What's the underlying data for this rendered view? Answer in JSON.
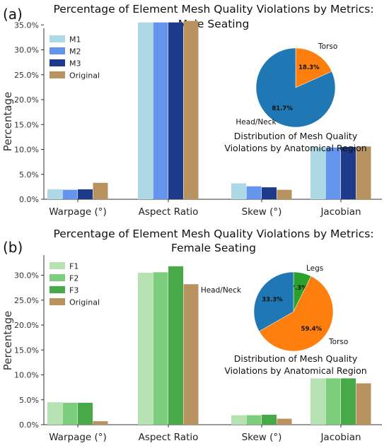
{
  "panels": [
    {
      "letter": "(a)",
      "title_line1": "Percentage of Element Mesh Quality Violations by Metrics:",
      "title_line2": "Male Seating",
      "ylabel": "Percentage",
      "categories": [
        "Warpage (°)",
        "Aspect Ratio",
        "Skew (°)",
        "Jacobian"
      ],
      "yticks": [
        "0.0%",
        "5.0%",
        "10.0%",
        "15.0%",
        "20.0%",
        "25.0%",
        "30.0%",
        "35.0%"
      ],
      "series": [
        {
          "name": "M1",
          "color": "#add8e6",
          "values": [
            2.0,
            35.5,
            3.2,
            10.4
          ]
        },
        {
          "name": "M2",
          "color": "#6495ed",
          "values": [
            1.9,
            35.5,
            2.6,
            10.4
          ]
        },
        {
          "name": "M3",
          "color": "#1e3a8a",
          "values": [
            2.0,
            35.5,
            2.4,
            10.5
          ]
        },
        {
          "name": "Original",
          "color": "#b8935f",
          "values": [
            3.3,
            35.8,
            1.9,
            10.6
          ]
        }
      ],
      "pie": {
        "caption_line1": "Distribution of Mesh Quality",
        "caption_line2": "Violations by Anatomical Region",
        "slices": [
          {
            "label": "Torso",
            "value": 18.3,
            "pct": "18.3%",
            "color": "#ff7f0e"
          },
          {
            "label": "Head/Neck",
            "value": 81.7,
            "pct": "81.7%",
            "color": "#1f77b4"
          }
        ]
      }
    },
    {
      "letter": "(b)",
      "title_line1": "Percentage of Element Mesh Quality Violations by Metrics:",
      "title_line2": "Female Seating",
      "ylabel": "Percentage",
      "categories": [
        "Warpage (°)",
        "Aspect Ratio",
        "Skew (°)",
        "Jacobian"
      ],
      "yticks": [
        "0.0%",
        "5.0%",
        "10.0%",
        "15.0%",
        "20.0%",
        "25.0%",
        "30.0%"
      ],
      "series": [
        {
          "name": "F1",
          "color": "#b5e2b0",
          "values": [
            4.5,
            30.5,
            1.9,
            9.3
          ]
        },
        {
          "name": "F2",
          "color": "#7ccd7c",
          "values": [
            4.4,
            30.6,
            1.9,
            9.3
          ]
        },
        {
          "name": "F3",
          "color": "#48a948",
          "values": [
            4.4,
            31.8,
            2.0,
            9.3
          ]
        },
        {
          "name": "Original",
          "color": "#b8935f",
          "values": [
            0.7,
            28.2,
            1.2,
            8.3
          ]
        }
      ],
      "pie": {
        "caption_line1": "Distribution of Mesh Quality",
        "caption_line2": "Violations by Anatomical Region",
        "slices": [
          {
            "label": "Legs",
            "value": 7.3,
            "pct": "7.3%",
            "color": "#2ca02c"
          },
          {
            "label": "Torso",
            "value": 59.4,
            "pct": "59.4%",
            "color": "#ff7f0e"
          },
          {
            "label": "Head/Neck",
            "value": 33.3,
            "pct": "33.3%",
            "color": "#1f77b4"
          }
        ]
      }
    }
  ],
  "chart_data": [
    {
      "type": "bar",
      "title": "Percentage of Element Mesh Quality Violations by Metrics: Male Seating",
      "xlabel": "",
      "ylabel": "Percentage",
      "categories": [
        "Warpage (°)",
        "Aspect Ratio",
        "Skew (°)",
        "Jacobian"
      ],
      "ylim": [
        0,
        37.5
      ],
      "grid": false,
      "legend": "top-left",
      "series": [
        {
          "name": "M1",
          "values": [
            2.0,
            35.5,
            3.2,
            10.4
          ]
        },
        {
          "name": "M2",
          "values": [
            1.9,
            35.5,
            2.6,
            10.4
          ]
        },
        {
          "name": "M3",
          "values": [
            2.0,
            35.5,
            2.4,
            10.5
          ]
        },
        {
          "name": "Original",
          "values": [
            3.3,
            35.8,
            1.9,
            10.6
          ]
        }
      ]
    },
    {
      "type": "pie",
      "title": "Distribution of Mesh Quality Violations by Anatomical Region",
      "categories": [
        "Torso",
        "Head/Neck"
      ],
      "values": [
        18.3,
        81.7
      ]
    },
    {
      "type": "bar",
      "title": "Percentage of Element Mesh Quality Violations by Metrics: Female Seating",
      "xlabel": "",
      "ylabel": "Percentage",
      "categories": [
        "Warpage (°)",
        "Aspect Ratio",
        "Skew (°)",
        "Jacobian"
      ],
      "ylim": [
        0,
        33.4
      ],
      "grid": false,
      "legend": "top-left",
      "series": [
        {
          "name": "F1",
          "values": [
            4.5,
            30.5,
            1.9,
            9.3
          ]
        },
        {
          "name": "F2",
          "values": [
            4.4,
            30.6,
            1.9,
            9.3
          ]
        },
        {
          "name": "F3",
          "values": [
            4.4,
            31.8,
            2.0,
            9.3
          ]
        },
        {
          "name": "Original",
          "values": [
            0.7,
            28.2,
            1.2,
            8.3
          ]
        }
      ]
    },
    {
      "type": "pie",
      "title": "Distribution of Mesh Quality Violations by Anatomical Region",
      "categories": [
        "Legs",
        "Torso",
        "Head/Neck"
      ],
      "values": [
        7.3,
        59.4,
        33.3
      ]
    }
  ]
}
